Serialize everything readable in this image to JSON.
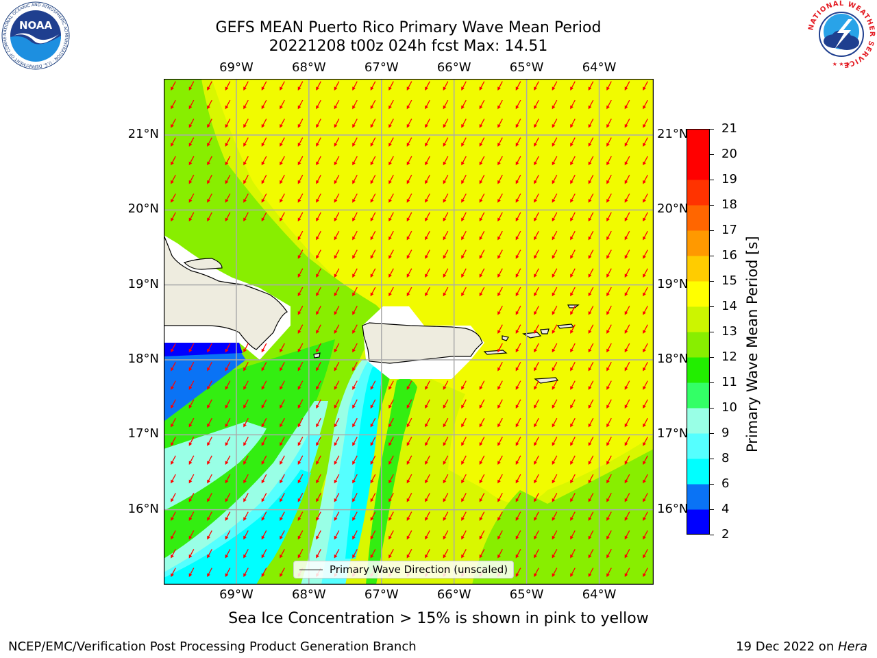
{
  "title": {
    "line1": "GEFS MEAN Puerto Rico Primary Wave Mean Period",
    "line2": "20221208 t00z 024h fcst   Max: 14.51"
  },
  "map": {
    "lon_labels": [
      "69°W",
      "68°W",
      "67°W",
      "66°W",
      "65°W",
      "64°W"
    ],
    "lat_labels": [
      "21°N",
      "20°N",
      "19°N",
      "18°N",
      "17°N",
      "16°N"
    ],
    "lon_range": [
      -70.0,
      -63.25
    ],
    "lat_range": [
      15.0,
      21.75
    ],
    "legend_text": "Primary Wave Direction (unscaled)",
    "land_color": "#eeecdf",
    "vector_color": "#ff0000"
  },
  "colorbar": {
    "label": "Primary Wave Mean Period [s]",
    "ticks": [
      "2",
      "4",
      "6",
      "8",
      "9",
      "10",
      "11",
      "12",
      "13",
      "14",
      "15",
      "16",
      "17",
      "18",
      "19",
      "20",
      "21"
    ],
    "colors": [
      "#0000ff",
      "#0a73f5",
      "#00ffff",
      "#55ffff",
      "#99ffe6",
      "#33ff66",
      "#22ee00",
      "#88ee00",
      "#ccf500",
      "#ffff00",
      "#ffcc00",
      "#ff9900",
      "#ff6600",
      "#ff3300",
      "#ff0000"
    ]
  },
  "caption": "Sea Ice Concentration > 15% is shown in pink to yellow",
  "footer": {
    "left": "NCEP/EMC/Verification Post Processing Product Generation Branch",
    "right_prefix": "19 Dec 2022 on ",
    "right_machine": "Hera"
  },
  "logos": {
    "noaa_text": "NOAA",
    "noaa_ring": "NATIONAL OCEANIC AND ATMOSPHERIC ADMINISTRATION · U.S. DEPARTMENT OF COMMERCE ·",
    "nws_ring": "NATIONAL WEATHER SERVICE"
  }
}
